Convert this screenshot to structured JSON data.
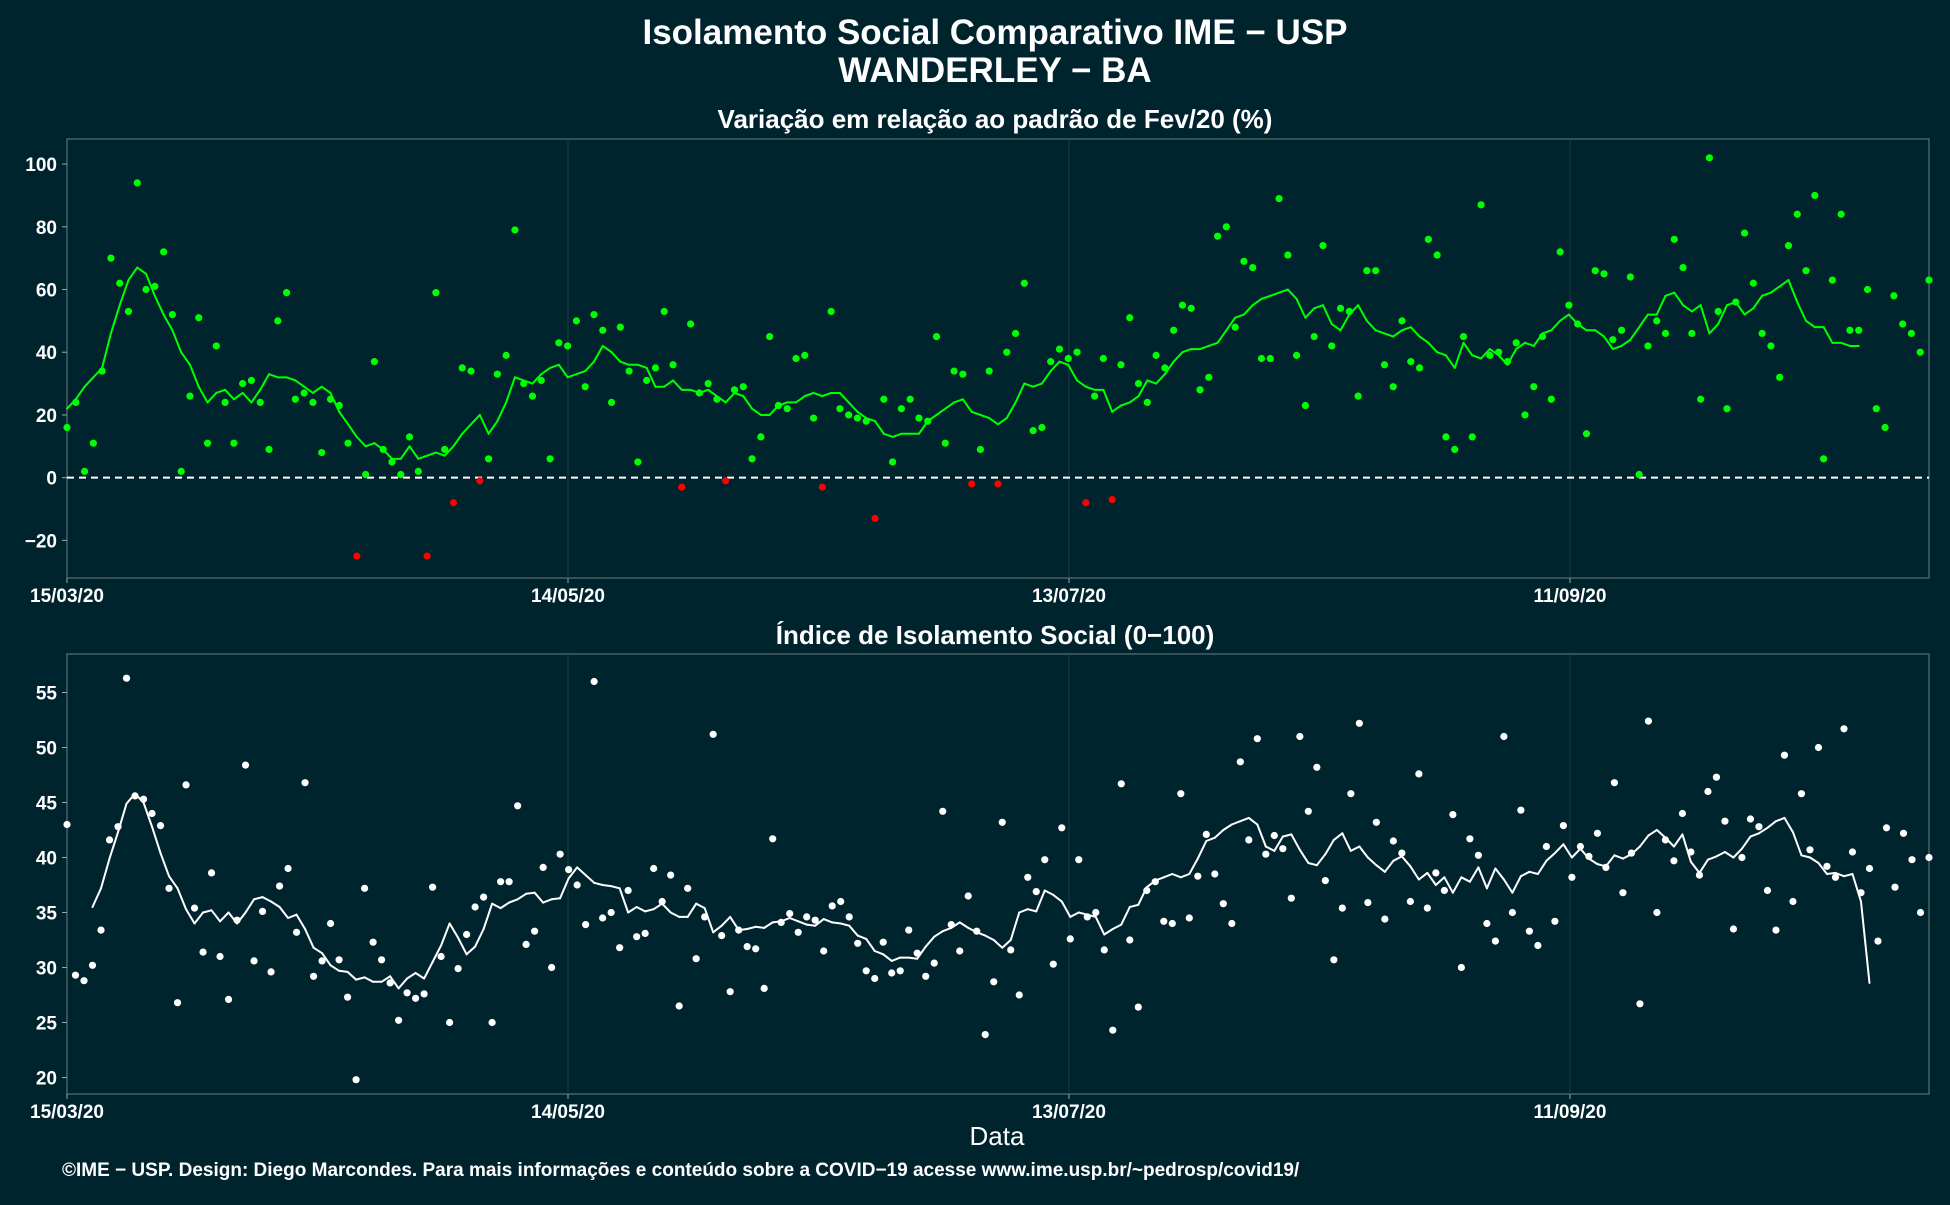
{
  "header": {
    "title_line1": "Isolamento Social Comparativo IME − USP",
    "title_line2": "WANDERLEY − BA"
  },
  "footer": {
    "caption": "©IME − USP. Design: Diego Marcondes. Para mais informações e conteúdo sobre a COVID−19 acesse www.ime.usp.br/~pedrosp/covid19/"
  },
  "colors": {
    "background": "#00242e",
    "positive": "#00ff00",
    "negative": "#ff0000",
    "index": "#ffffff",
    "grid": "#1c3c45"
  },
  "chart_data": [
    {
      "type": "scatter",
      "title": "Variação em relação ao padrão de Fev/20 (%)",
      "xlabel": "",
      "ylabel": "",
      "x_start": "15/03/20",
      "x_end": "24/10/20",
      "xticks": [
        "15/03/20",
        "14/05/20",
        "13/07/20",
        "11/09/20"
      ],
      "yticks": [
        "−20",
        "0",
        "20",
        "40",
        "60",
        "80",
        "100"
      ],
      "ylim": [
        -32,
        108
      ],
      "reference_line": 0,
      "grid": true,
      "series": [
        {
          "role": "daily points (green above 0, red below 0)",
          "values": [
            16,
            24,
            2,
            11,
            34,
            70,
            62,
            53,
            94,
            60,
            61,
            72,
            52,
            2,
            26,
            51,
            11,
            42,
            24,
            11,
            30,
            31,
            24,
            9,
            50,
            59,
            25,
            27,
            24,
            8,
            25,
            23,
            11,
            -25,
            1,
            37,
            9,
            5,
            1,
            13,
            2,
            -25,
            59,
            9,
            -8,
            35,
            34,
            -1,
            6,
            33,
            39,
            79,
            30,
            26,
            31,
            6,
            43,
            42,
            50,
            29,
            52,
            47,
            24,
            48,
            34,
            5,
            31,
            35,
            53,
            36,
            -3,
            49,
            27,
            30,
            25,
            -1,
            28,
            29,
            6,
            13,
            45,
            23,
            22,
            38,
            39,
            19,
            -3,
            53,
            22,
            20,
            19,
            18,
            -13,
            25,
            5,
            22,
            25,
            19,
            18,
            45,
            11,
            34,
            33,
            -2,
            9,
            34,
            -2,
            40,
            46,
            62,
            15,
            16,
            37,
            41,
            38,
            40,
            -8,
            26,
            38,
            -7,
            36,
            51,
            30,
            24,
            39,
            35,
            47,
            55,
            54,
            28,
            32,
            77,
            80,
            48,
            69,
            67,
            38,
            38,
            89,
            71,
            39,
            23,
            45,
            74,
            42,
            54,
            53,
            26,
            66,
            66,
            36,
            29,
            50,
            37,
            35,
            76,
            71,
            13,
            9,
            45,
            13,
            87,
            39,
            40,
            37,
            43,
            20,
            29,
            45,
            25,
            72,
            55,
            49,
            14,
            66,
            65,
            44,
            47,
            64,
            1,
            42,
            50,
            46,
            76,
            67,
            46,
            25,
            102,
            53,
            22,
            56,
            78,
            62,
            46,
            42,
            32,
            74,
            84,
            66,
            90,
            6,
            63,
            84,
            47,
            47,
            60,
            22,
            16,
            58,
            49,
            46,
            40,
            63
          ]
        },
        {
          "role": "7-day moving average line",
          "values": [
            22,
            25,
            29,
            32,
            35,
            46,
            55,
            63,
            67,
            65,
            58,
            52,
            47,
            40,
            36,
            29,
            24,
            27,
            28,
            25,
            27,
            24,
            28,
            33,
            32,
            32,
            31,
            29,
            27,
            29,
            27,
            21,
            17,
            13,
            10,
            11,
            9,
            6,
            6,
            10,
            6,
            7,
            8,
            7,
            10,
            14,
            17,
            20,
            14,
            18,
            24,
            32,
            31,
            30,
            33,
            35,
            36,
            32,
            33,
            34,
            37,
            42,
            40,
            37,
            36,
            36,
            35,
            29,
            29,
            31,
            28,
            28,
            27,
            28,
            26,
            24,
            27,
            26,
            22,
            20,
            20,
            23,
            24,
            24,
            26,
            27,
            26,
            27,
            27,
            24,
            21,
            19,
            18,
            14,
            13,
            14,
            14,
            14,
            18,
            20,
            22,
            24,
            25,
            21,
            20,
            19,
            17,
            19,
            24,
            30,
            29,
            30,
            34,
            37,
            36,
            31,
            29,
            28,
            28,
            21,
            23,
            24,
            26,
            31,
            30,
            33,
            37,
            40,
            41,
            41,
            42,
            43,
            47,
            51,
            52,
            55,
            57,
            58,
            59,
            60,
            57,
            51,
            54,
            55,
            49,
            47,
            52,
            55,
            50,
            47,
            46,
            45,
            47,
            48,
            45,
            43,
            40,
            39,
            35,
            43,
            39,
            38,
            41,
            39,
            36,
            41,
            43,
            42,
            46,
            47,
            50,
            52,
            49,
            47,
            47,
            45,
            41,
            42,
            44,
            48,
            52,
            52,
            58,
            59,
            55,
            53,
            55,
            46,
            49,
            55,
            56,
            52,
            54,
            58,
            59,
            61,
            63,
            56,
            50,
            48,
            48,
            43,
            43,
            42,
            42
          ]
        }
      ]
    },
    {
      "type": "scatter",
      "title": "Índice de Isolamento Social (0−100)",
      "xlabel": "Data",
      "ylabel": "",
      "x_start": "15/03/20",
      "x_end": "24/10/20",
      "xticks": [
        "15/03/20",
        "14/05/20",
        "13/07/20",
        "11/09/20"
      ],
      "yticks": [
        "20",
        "25",
        "30",
        "35",
        "40",
        "45",
        "50",
        "55"
      ],
      "ylim": [
        18.5,
        58.5
      ],
      "grid": true,
      "series": [
        {
          "role": "daily points",
          "values": [
            43,
            29.3,
            28.8,
            30.2,
            33.4,
            41.6,
            42.8,
            56.3,
            45.6,
            45.3,
            44.0,
            42.9,
            37.2,
            26.8,
            46.6,
            35.4,
            31.4,
            38.6,
            31.0,
            27.1,
            34.3,
            48.4,
            30.6,
            35.1,
            29.6,
            37.4,
            39.0,
            33.2,
            46.8,
            29.2,
            30.6,
            34.0,
            30.7,
            27.3,
            19.8,
            37.2,
            32.3,
            30.7,
            28.6,
            25.2,
            27.7,
            27.2,
            27.6,
            37.3,
            31.0,
            25.0,
            29.9,
            33.0,
            35.5,
            36.4,
            25.0,
            37.8,
            37.8,
            44.7,
            32.1,
            33.3,
            39.1,
            30.0,
            40.3,
            38.9,
            37.5,
            33.9,
            56.0,
            34.5,
            35.0,
            31.8,
            37.0,
            32.8,
            33.1,
            39.0,
            36.0,
            38.4,
            26.5,
            37.2,
            30.8,
            34.6,
            51.2,
            32.9,
            27.8,
            33.4,
            31.9,
            31.7,
            28.1,
            41.7,
            34.1,
            34.9,
            33.2,
            34.6,
            34.3,
            31.5,
            35.6,
            36.0,
            34.6,
            32.2,
            29.7,
            29.0,
            32.3,
            29.5,
            29.7,
            33.4,
            31.3,
            29.2,
            30.4,
            44.2,
            33.9,
            31.5,
            36.5,
            33.3,
            23.9,
            28.7,
            43.2,
            31.6,
            27.5,
            38.2,
            36.9,
            39.8,
            30.3,
            42.7,
            32.6,
            39.8,
            34.6,
            35.0,
            31.6,
            24.3,
            46.7,
            32.5,
            26.4,
            37.0,
            37.8,
            34.2,
            34.0,
            45.8,
            34.5,
            38.3,
            42.1,
            38.5,
            35.8,
            34.0,
            48.7,
            41.6,
            50.8,
            40.3,
            42.0,
            40.8,
            36.3,
            51.0,
            44.2,
            48.2,
            37.9,
            30.7,
            35.4,
            45.8,
            52.2,
            35.9,
            43.2,
            34.4,
            41.5,
            40.4,
            36.0,
            47.6,
            35.4,
            38.6,
            37.0,
            43.9,
            30.0,
            41.7,
            40.2,
            34.0,
            32.4,
            51.0,
            35.0,
            44.3,
            33.3,
            32.0,
            41.0,
            34.2,
            42.9,
            38.2,
            41.0,
            40.1,
            42.2,
            39.1,
            46.8,
            36.8,
            40.4,
            26.7,
            52.4,
            35.0,
            41.6,
            39.7,
            44.0,
            40.5,
            38.4,
            46.0,
            47.3,
            43.3,
            33.5,
            40.0,
            43.5,
            42.8,
            37.0,
            33.4,
            49.3,
            36.0,
            45.8,
            40.7,
            50.0,
            39.2,
            38.2,
            51.7,
            40.5,
            36.8,
            39.0,
            32.4,
            42.7,
            37.3,
            42.2,
            39.8,
            35.0,
            40.0
          ]
        },
        {
          "role": "7-day moving average line",
          "values": [
            null,
            null,
            null,
            35.5,
            37.2,
            39.9,
            42.3,
            44.9,
            45.8,
            45.0,
            42.8,
            40.4,
            38.3,
            37.2,
            35.3,
            34.0,
            35.0,
            35.2,
            34.2,
            35.0,
            34.0,
            35.0,
            36.2,
            36.4,
            36.0,
            35.5,
            34.5,
            34.8,
            33.5,
            31.8,
            31.3,
            30.2,
            29.7,
            29.6,
            28.9,
            29.1,
            28.7,
            28.7,
            29.2,
            28.1,
            29.0,
            29.5,
            29.0,
            30.5,
            32.0,
            34.0,
            32.7,
            31.2,
            31.9,
            33.5,
            35.8,
            35.4,
            35.9,
            36.2,
            36.7,
            36.8,
            35.9,
            36.2,
            36.3,
            38.1,
            39.1,
            38.4,
            37.7,
            37.5,
            37.4,
            37.2,
            35.0,
            35.5,
            35.1,
            35.3,
            35.8,
            35.0,
            34.6,
            34.6,
            35.8,
            35.4,
            33.2,
            33.8,
            34.6,
            33.4,
            33.5,
            33.7,
            33.6,
            34.1,
            34.2,
            34.5,
            34.2,
            33.9,
            33.8,
            34.4,
            34.1,
            34.0,
            33.8,
            32.9,
            32.6,
            31.5,
            31.2,
            30.6,
            30.9,
            30.9,
            30.8,
            31.9,
            32.8,
            33.3,
            33.6,
            34.1,
            33.6,
            33.2,
            32.9,
            32.5,
            31.8,
            32.5,
            35.0,
            35.3,
            35.1,
            37.0,
            36.6,
            36.0,
            34.6,
            35.0,
            34.8,
            34.6,
            33.0,
            33.5,
            33.9,
            35.5,
            35.7,
            37.3,
            37.9,
            38.2,
            38.5,
            38.2,
            38.5,
            39.9,
            41.5,
            41.8,
            42.5,
            43.0,
            43.3,
            43.6,
            43.0,
            41.0,
            40.6,
            41.9,
            42.1,
            40.7,
            39.5,
            39.3,
            40.3,
            41.6,
            42.2,
            40.6,
            41.0,
            40.0,
            39.3,
            38.7,
            39.7,
            40.1,
            39.2,
            38.0,
            38.6,
            37.5,
            38.2,
            36.8,
            38.2,
            37.8,
            39.1,
            37.2,
            39.0,
            38.0,
            36.8,
            38.3,
            38.7,
            38.5,
            39.7,
            40.4,
            41.2,
            40.0,
            40.8,
            39.9,
            39.4,
            39.2,
            40.2,
            39.9,
            40.3,
            41.0,
            42.0,
            42.5,
            41.8,
            41.0,
            42.1,
            39.6,
            38.6,
            39.8,
            40.1,
            40.5,
            40.0,
            40.8,
            41.9,
            42.2,
            42.7,
            43.3,
            43.6,
            42.3,
            40.2,
            40.0,
            39.5,
            38.5,
            38.6,
            38.3,
            38.5,
            36.0,
            28.6
          ]
        }
      ]
    }
  ]
}
